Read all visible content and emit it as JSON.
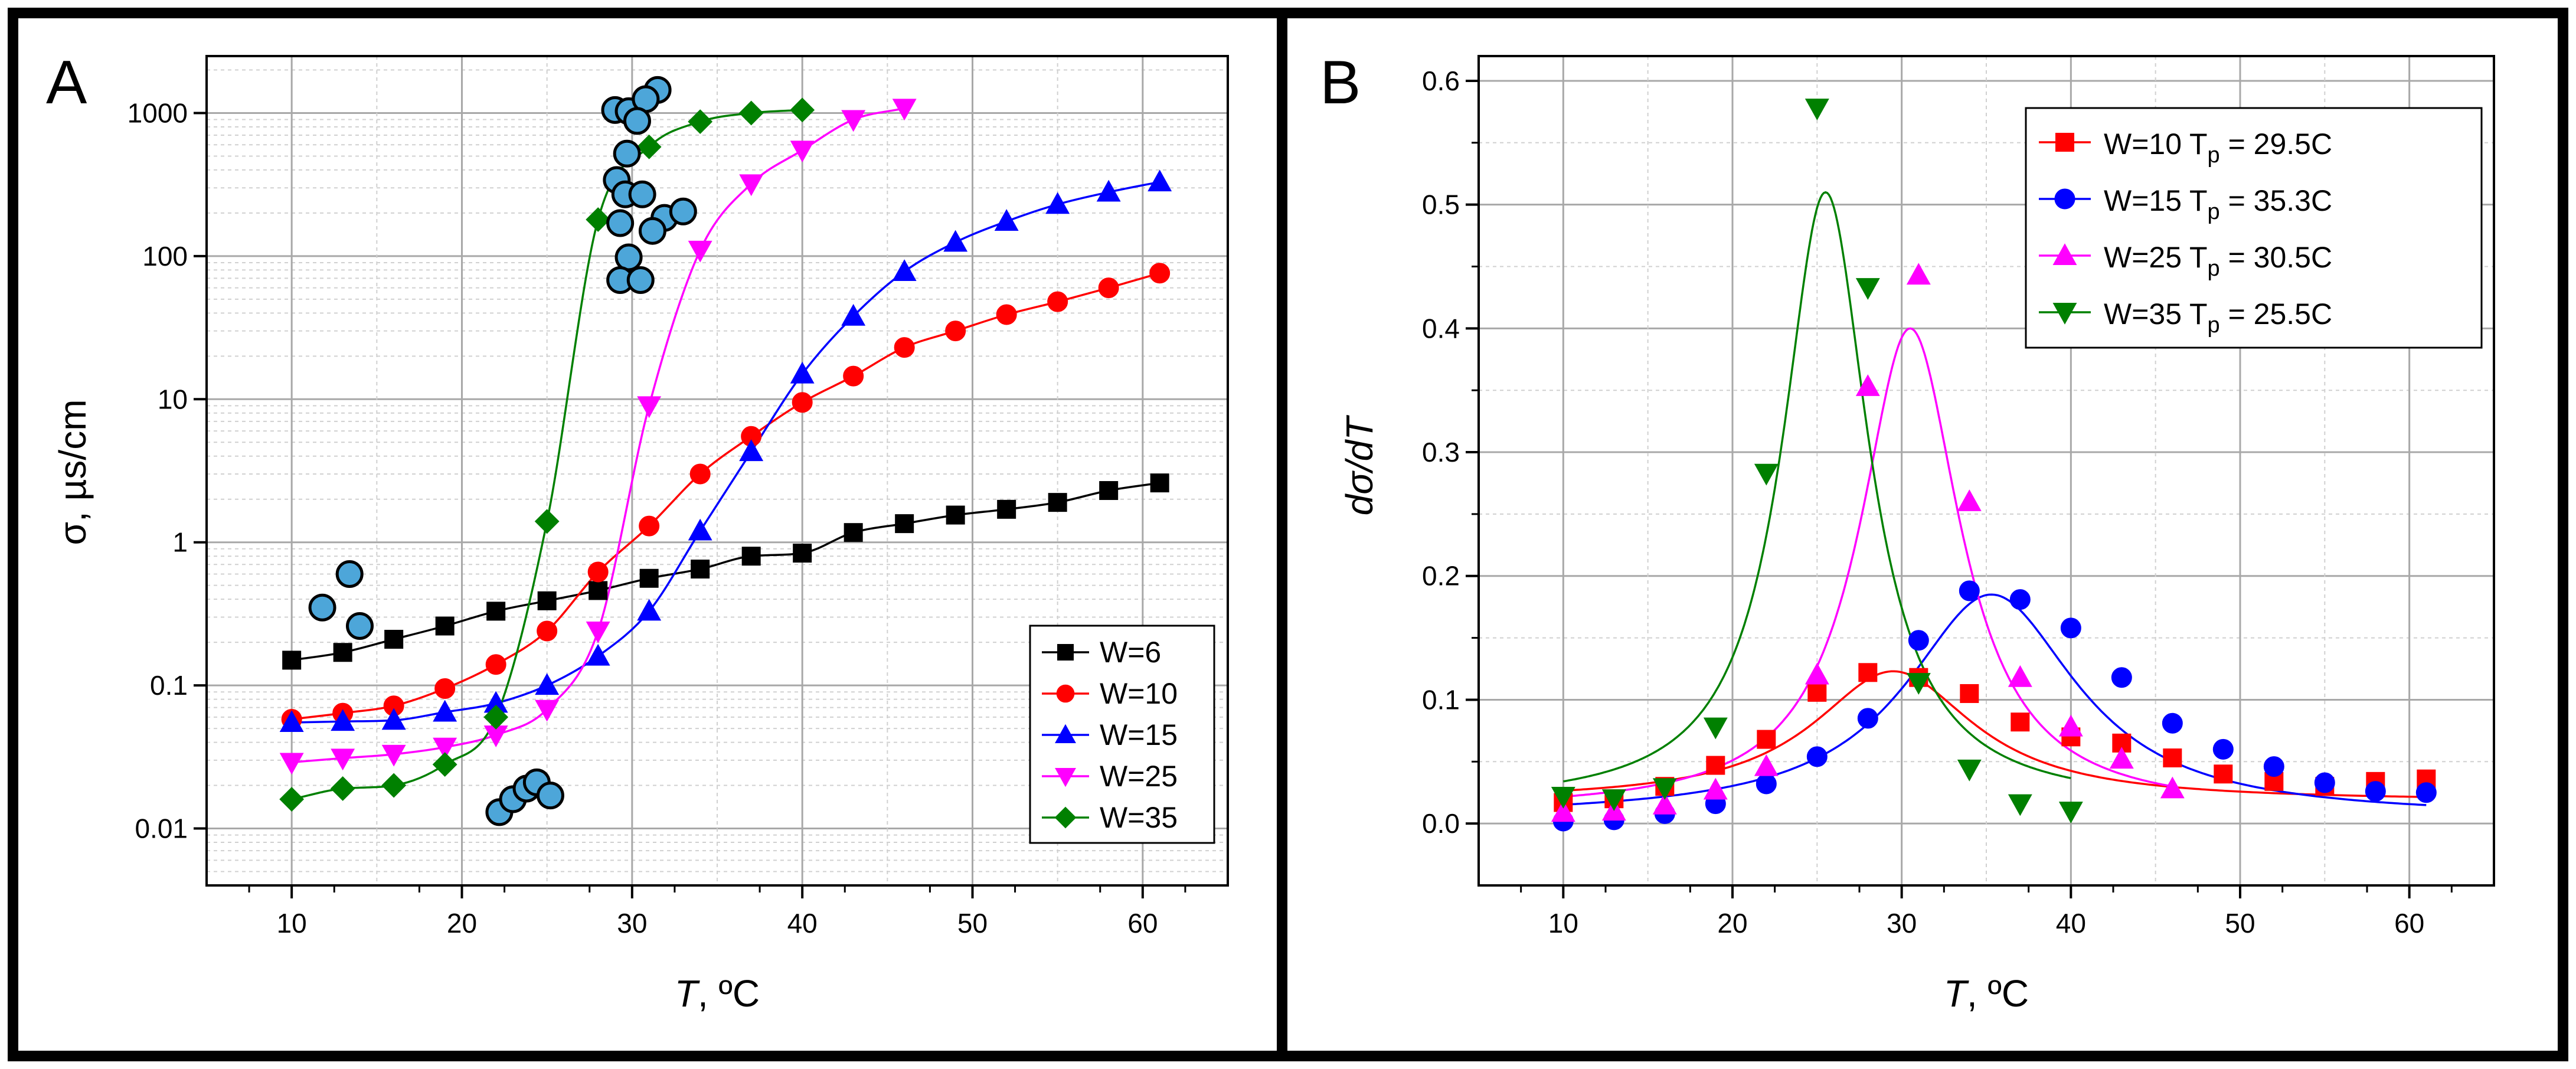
{
  "panel_a_letter": "A",
  "panel_b_letter": "B",
  "chart_data": [
    {
      "panel": "A",
      "type": "scatter",
      "log_y": true,
      "ylabel": "σ, µs/cm",
      "xlabel": "T, °C",
      "xlabel_italic": "T",
      "xlabel_rest": ", ºC",
      "xlim": [
        5,
        65
      ],
      "ylim": [
        0.004,
        2500
      ],
      "xticks": [
        10,
        20,
        30,
        40,
        50,
        60
      ],
      "xtick_labels": [
        "10",
        "20",
        "30",
        "40",
        "50",
        "60"
      ],
      "yticks": [
        0.01,
        0.1,
        1,
        10,
        100,
        1000
      ],
      "ytick_labels": [
        "0.01",
        "0.1",
        "1",
        "10",
        "100",
        "1000"
      ],
      "grid": true,
      "legend_position": "bottom-right",
      "series": [
        {
          "name": "W=6",
          "color": "#000000",
          "marker": "square",
          "x": [
            10,
            13,
            16,
            19,
            22,
            25,
            28,
            31,
            34,
            37,
            40,
            43,
            46,
            49,
            52,
            55,
            58,
            61
          ],
          "y": [
            0.15,
            0.17,
            0.21,
            0.26,
            0.33,
            0.39,
            0.46,
            0.56,
            0.65,
            0.8,
            0.84,
            1.17,
            1.35,
            1.55,
            1.7,
            1.9,
            2.3,
            2.6
          ]
        },
        {
          "name": "W=10",
          "color": "#ff0000",
          "marker": "circle",
          "x": [
            10,
            13,
            16,
            19,
            22,
            25,
            28,
            31,
            34,
            37,
            40,
            43,
            46,
            49,
            52,
            55,
            58,
            61
          ],
          "y": [
            0.058,
            0.064,
            0.072,
            0.095,
            0.14,
            0.24,
            0.62,
            1.3,
            3.0,
            5.5,
            9.5,
            14.5,
            23,
            30,
            39,
            48,
            60,
            76
          ]
        },
        {
          "name": "W=15",
          "color": "#0000ff",
          "marker": "triangle-up",
          "x": [
            10,
            13,
            16,
            19,
            22,
            25,
            28,
            31,
            34,
            37,
            40,
            43,
            46,
            49,
            52,
            55,
            58,
            61
          ],
          "y": [
            0.055,
            0.056,
            0.057,
            0.065,
            0.075,
            0.1,
            0.16,
            0.33,
            1.2,
            4.3,
            15,
            38,
            78,
            125,
            175,
            230,
            280,
            330
          ]
        },
        {
          "name": "W=25",
          "color": "#ff00ff",
          "marker": "triangle-down",
          "x": [
            10,
            13,
            16,
            19,
            22,
            25,
            28,
            31,
            34,
            37,
            40,
            43,
            46
          ],
          "y": [
            0.029,
            0.031,
            0.033,
            0.037,
            0.045,
            0.068,
            0.24,
            9,
            110,
            320,
            550,
            900,
            1080
          ]
        },
        {
          "name": "W=35",
          "color": "#008000",
          "marker": "diamond",
          "x": [
            10,
            13,
            16,
            19,
            22,
            25,
            28,
            31,
            34,
            37,
            40
          ],
          "y": [
            0.016,
            0.019,
            0.02,
            0.028,
            0.06,
            1.4,
            180,
            580,
            870,
            1000,
            1050
          ]
        }
      ],
      "bubbles": {
        "color": "#4da6d9",
        "points": [
          [
            11.8,
            0.35
          ],
          [
            13.4,
            0.6
          ],
          [
            14,
            0.26
          ],
          [
            22.2,
            0.013
          ],
          [
            23,
            0.016
          ],
          [
            23.8,
            0.019
          ],
          [
            24.4,
            0.021
          ],
          [
            25.2,
            0.017
          ],
          [
            29,
            1050
          ],
          [
            29.8,
            1030
          ],
          [
            31.5,
            1450
          ],
          [
            30.8,
            1250
          ],
          [
            30.3,
            880
          ],
          [
            29.7,
            520
          ],
          [
            29.1,
            340
          ],
          [
            29.6,
            270
          ],
          [
            30.6,
            270
          ],
          [
            31.9,
            185
          ],
          [
            29.3,
            170
          ],
          [
            31.2,
            150
          ],
          [
            33,
            205
          ],
          [
            29.8,
            98
          ],
          [
            29.3,
            68
          ],
          [
            30.5,
            68
          ]
        ]
      }
    },
    {
      "panel": "B",
      "type": "scatter",
      "ylabel": "dσ/dT",
      "xlabel": "T, °C",
      "xlabel_italic": "T",
      "xlabel_rest": ", ºC",
      "xlim": [
        5,
        65
      ],
      "ylim": [
        -0.05,
        0.62
      ],
      "xticks": [
        10,
        20,
        30,
        40,
        50,
        60
      ],
      "xtick_labels": [
        "10",
        "20",
        "30",
        "40",
        "50",
        "60"
      ],
      "yticks": [
        0,
        0.1,
        0.2,
        0.3,
        0.4,
        0.5,
        0.6
      ],
      "ytick_labels": [
        "0.0",
        "0.1",
        "0.2",
        "0.3",
        "0.4",
        "0.5",
        "0.6"
      ],
      "grid": true,
      "legend_position": "top-right",
      "series": [
        {
          "name": "W=10 Tp = 29.5C",
          "label_main": "W=10 T",
          "label_sub": "p",
          "label_tail": " = 29.5C",
          "color": "#ff0000",
          "marker": "square",
          "x": [
            10,
            13,
            16,
            19,
            22,
            25,
            28,
            31,
            34,
            37,
            40,
            43,
            46,
            49,
            52,
            55,
            58,
            61
          ],
          "y": [
            0.017,
            0.02,
            0.03,
            0.047,
            0.068,
            0.106,
            0.122,
            0.118,
            0.105,
            0.082,
            0.07,
            0.065,
            0.053,
            0.04,
            0.034,
            0.03,
            0.034,
            0.036
          ],
          "fit": {
            "peak": 29.5,
            "amp": 0.105,
            "width": 5.8,
            "base": 0.018
          }
        },
        {
          "name": "W=15 Tp = 35.3C",
          "label_main": "W=15 T",
          "label_sub": "p",
          "label_tail": " = 35.3C",
          "color": "#0000ff",
          "marker": "circle",
          "x": [
            10,
            13,
            16,
            19,
            22,
            25,
            28,
            31,
            34,
            37,
            40,
            43,
            46,
            49,
            52,
            55,
            58,
            61
          ],
          "y": [
            0.002,
            0.003,
            0.008,
            0.016,
            0.032,
            0.054,
            0.085,
            0.148,
            0.188,
            0.181,
            0.158,
            0.118,
            0.081,
            0.06,
            0.046,
            0.033,
            0.026,
            0.025
          ],
          "fit": {
            "peak": 35.3,
            "amp": 0.18,
            "width": 6.2,
            "base": 0.005
          }
        },
        {
          "name": "W=25 Tp = 30.5C",
          "label_main": "W=25 T",
          "label_sub": "p",
          "label_tail": " = 30.5C",
          "color": "#ff00ff",
          "marker": "triangle-up",
          "x": [
            10,
            13,
            16,
            19,
            22,
            25,
            28,
            31,
            34,
            37,
            40,
            43,
            46
          ],
          "y": [
            0.009,
            0.01,
            0.015,
            0.027,
            0.046,
            0.12,
            0.353,
            0.443,
            0.26,
            0.118,
            0.078,
            0.052,
            0.028
          ],
          "fit": {
            "peak": 30.5,
            "amp": 0.39,
            "width": 3.6,
            "base": 0.01
          }
        },
        {
          "name": "W=35 Tp = 25.5C",
          "label_main": "W=35 T",
          "label_sub": "p",
          "label_tail": " = 25.5C",
          "color": "#008000",
          "marker": "triangle-down",
          "x": [
            10,
            13,
            16,
            19,
            22,
            25,
            28,
            31,
            34,
            37,
            40
          ],
          "y": [
            0.022,
            0.02,
            0.029,
            0.078,
            0.283,
            0.578,
            0.433,
            0.114,
            0.044,
            0.016,
            0.01
          ],
          "fit": {
            "peak": 25.5,
            "amp": 0.495,
            "width": 3.1,
            "base": 0.015
          }
        }
      ]
    }
  ]
}
